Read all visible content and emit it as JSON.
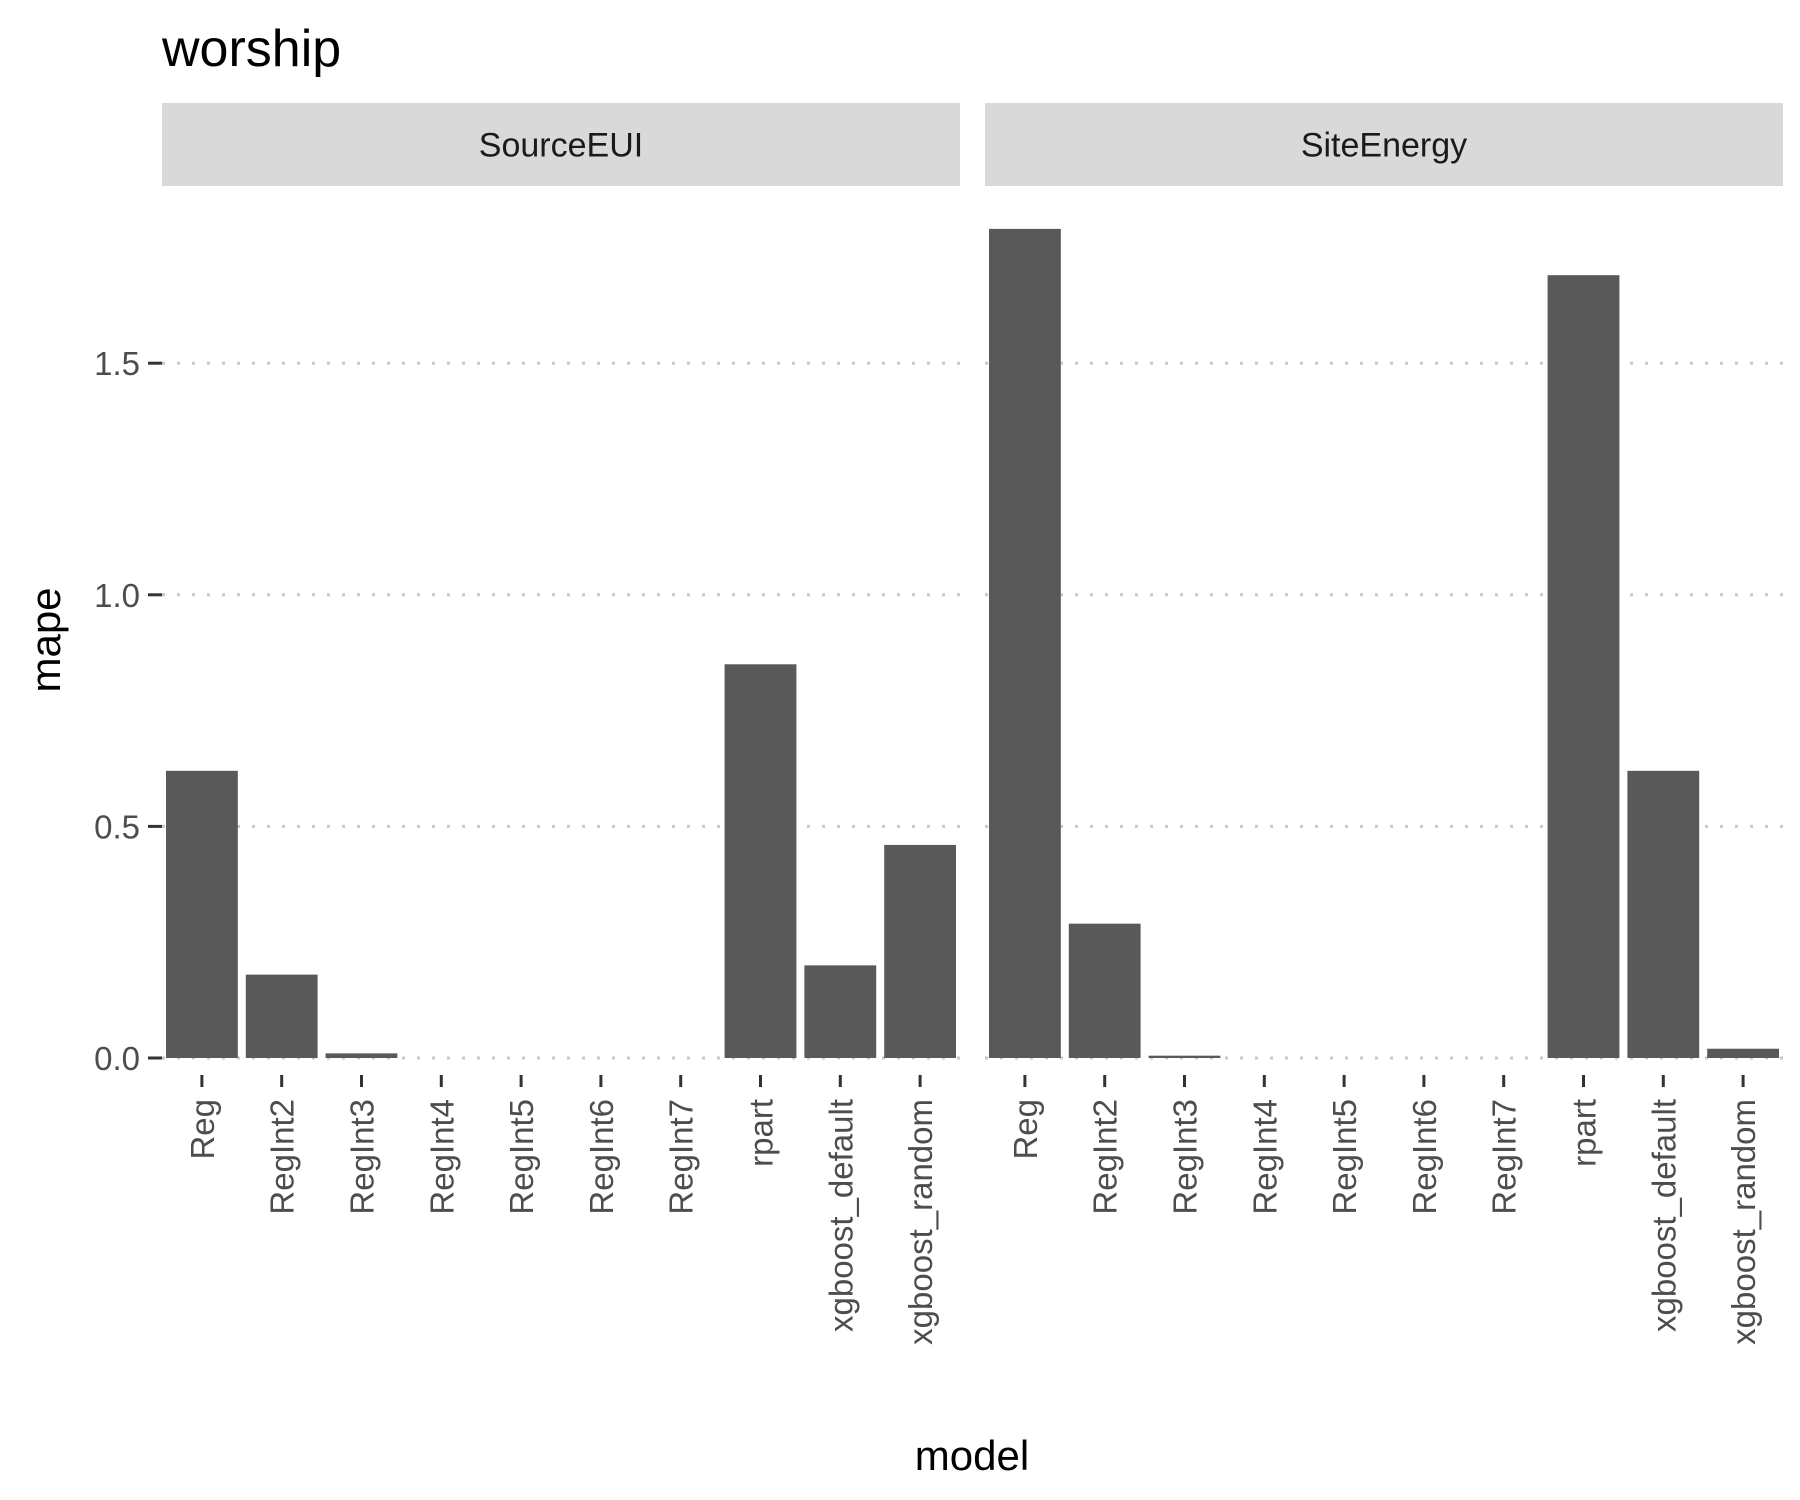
{
  "chart_data": {
    "type": "bar",
    "title": "worship",
    "xlabel": "model",
    "ylabel": "mape",
    "ylim": [
      0,
      1.8
    ],
    "yticks": [
      0.0,
      0.5,
      1.0,
      1.5
    ],
    "ytick_labels": [
      "0.0",
      "0.5",
      "1.0",
      "1.5"
    ],
    "grid": "major y, dotted",
    "bar_color": "#595959",
    "categories": [
      "Reg",
      "RegInt2",
      "RegInt3",
      "RegInt4",
      "RegInt5",
      "RegInt6",
      "RegInt7",
      "rpart",
      "xgboost_default",
      "xgboost_random"
    ],
    "facets": [
      {
        "name": "SourceEUI",
        "values": [
          0.62,
          0.18,
          0.01,
          0,
          0,
          0,
          0,
          0.85,
          0.2,
          0.46
        ]
      },
      {
        "name": "SiteEnergy",
        "values": [
          1.79,
          0.29,
          0.005,
          0,
          0,
          0,
          0,
          1.69,
          0.62,
          0.02
        ]
      }
    ]
  }
}
